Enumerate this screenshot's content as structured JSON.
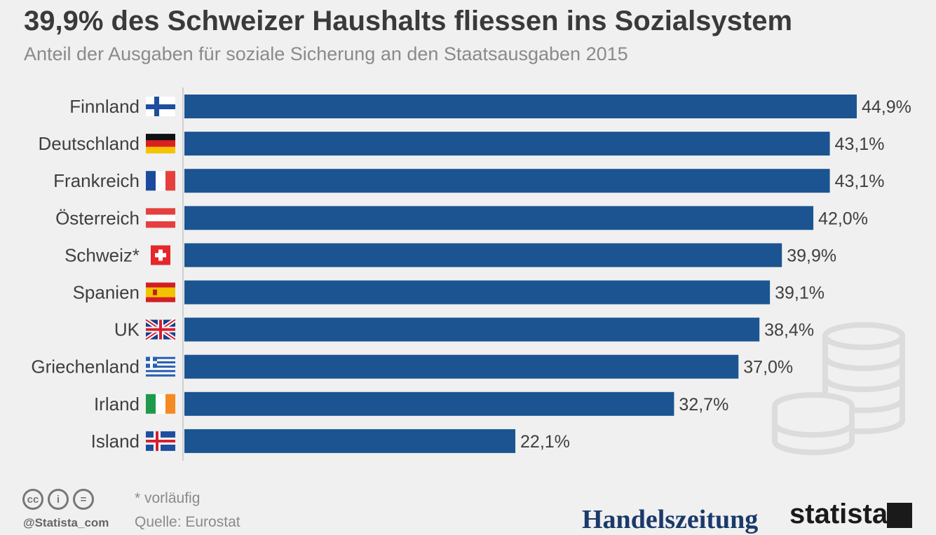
{
  "header": {
    "title": "39,9% des Schweizer Haushalts fliessen ins Sozialsystem",
    "subtitle": "Anteil der Ausgaben für soziale Sicherung an den Staatsausgaben 2015"
  },
  "chart_data": {
    "type": "bar",
    "orientation": "horizontal",
    "categories": [
      "Finnland",
      "Deutschland",
      "Frankreich",
      "Österreich",
      "Schweiz*",
      "Spanien",
      "UK",
      "Griechenland",
      "Irland",
      "Island"
    ],
    "values": [
      44.9,
      43.1,
      43.1,
      42.0,
      39.9,
      39.1,
      38.4,
      37.0,
      32.7,
      22.1
    ],
    "value_labels": [
      "44,9%",
      "43,1%",
      "43,1%",
      "42,0%",
      "39,9%",
      "39,1%",
      "38,4%",
      "37,0%",
      "32,7%",
      "22,1%"
    ],
    "flags": [
      "finland-flag-icon",
      "germany-flag-icon",
      "france-flag-icon",
      "austria-flag-icon",
      "switzerland-flag-icon",
      "spain-flag-icon",
      "uk-flag-icon",
      "greece-flag-icon",
      "ireland-flag-icon",
      "iceland-flag-icon"
    ],
    "xlim": [
      0,
      45
    ],
    "grid": false,
    "bar_color": "#1b5491"
  },
  "footer": {
    "footnote": "* vorläufig",
    "source": "Quelle: Eurostat",
    "credit": "@Statista_com",
    "license_icons": [
      "cc-icon",
      "by-icon",
      "nd-icon"
    ],
    "logo_left": "Handelszeitung",
    "logo_right": "statista"
  }
}
